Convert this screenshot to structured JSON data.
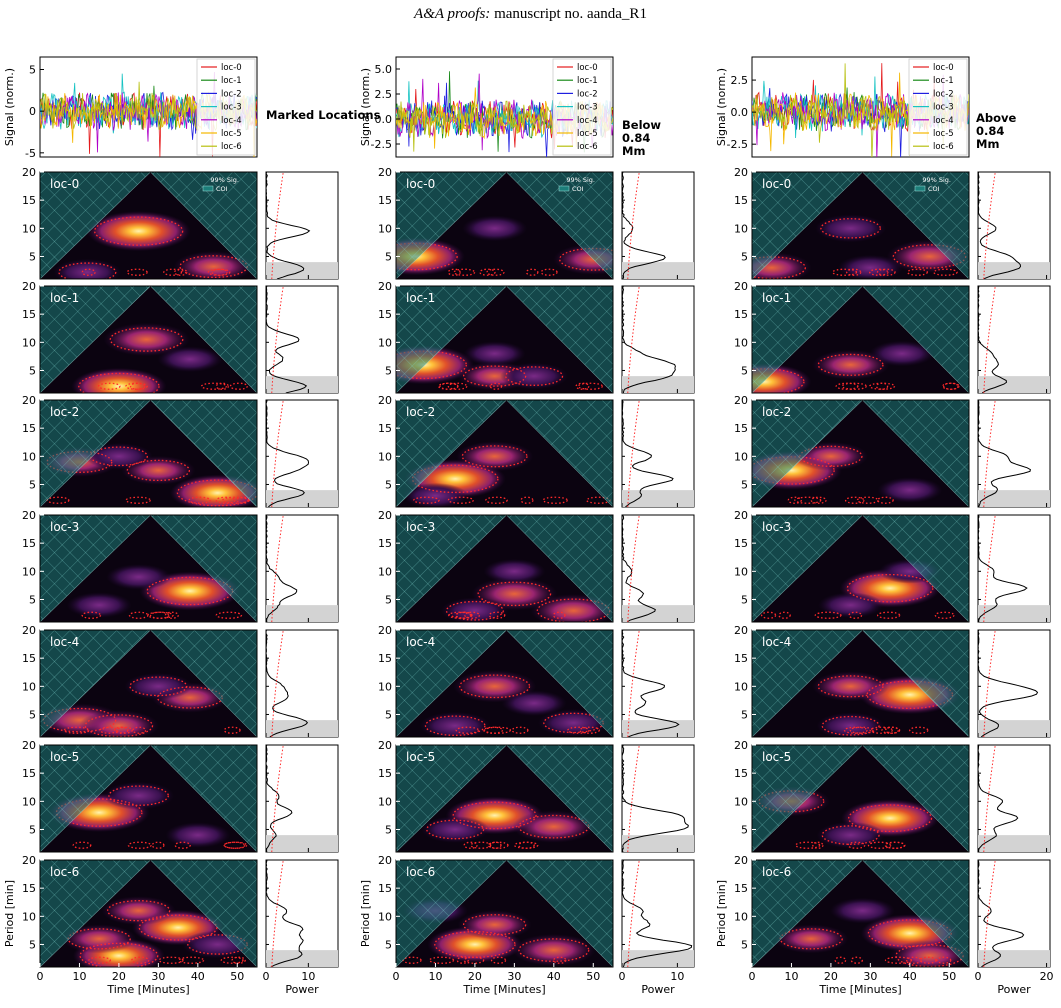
{
  "header": {
    "prefix": "A&A proofs:",
    "text": "manuscript no. aanda_R1"
  },
  "colors": {
    "loc-0": "#e41a1c",
    "loc-1": "#1a8a1a",
    "loc-2": "#1f1fe0",
    "loc-3": "#17c3c3",
    "loc-4": "#b000c8",
    "loc-5": "#f5b800",
    "loc-6": "#b8c010",
    "coi_fill": "#1d7f7a",
    "background": "#0b0310",
    "significance": "#ff2a2a"
  },
  "chart_data": {
    "type": "wavelet-panel-grid",
    "locations": [
      "loc-0",
      "loc-1",
      "loc-2",
      "loc-3",
      "loc-4",
      "loc-5",
      "loc-6"
    ],
    "wavelet_legend": [
      "99% Sig.",
      "COI"
    ],
    "time_xlabel": "Time [Minutes]",
    "period_ylabel": "Period [min]",
    "signal_ylabel": "Signal (norm.)",
    "power_xlabel": "Power",
    "period_ylim": [
      1,
      20
    ],
    "period_ticks": [
      "5",
      "10",
      "15",
      "20"
    ],
    "time_xlim": [
      0,
      55
    ],
    "time_ticks": [
      "0",
      "10",
      "20",
      "30",
      "40",
      "50"
    ],
    "columns": [
      {
        "label": "Marked Locations",
        "signal_ylim": [
          -5.5,
          6.5
        ],
        "signal_ticks": [
          "-5",
          "0",
          "5"
        ],
        "signal_tick_values": [
          -5,
          0,
          5
        ],
        "power_xlim": [
          0,
          17
        ],
        "power_ticks": [
          "0",
          "10"
        ],
        "power_tick_values": [
          0,
          10
        ],
        "power_peaks": [
          9.5,
          10.5,
          10,
          7,
          8,
          6,
          9
        ],
        "blobs": [
          [
            [
              25,
              9.5,
              1.0
            ],
            [
              44,
              3.2,
              0.6
            ],
            [
              12,
              2.2,
              0.4
            ]
          ],
          [
            [
              27,
              10.5,
              0.7
            ],
            [
              20,
              2.2,
              0.85
            ],
            [
              38,
              7,
              0.35
            ]
          ],
          [
            [
              10,
              9,
              0.55
            ],
            [
              45,
              3.5,
              0.85
            ],
            [
              30,
              7.5,
              0.5
            ],
            [
              20,
              10,
              0.4
            ]
          ],
          [
            [
              38,
              6.5,
              0.95
            ],
            [
              25,
              9,
              0.35
            ],
            [
              15,
              4,
              0.35
            ]
          ],
          [
            [
              10,
              4,
              0.7
            ],
            [
              20,
              3,
              0.6
            ],
            [
              38,
              8,
              0.55
            ],
            [
              30,
              10,
              0.4
            ]
          ],
          [
            [
              15,
              8,
              0.95
            ],
            [
              25,
              11,
              0.45
            ],
            [
              40,
              4,
              0.35
            ]
          ],
          [
            [
              35,
              8,
              0.8
            ],
            [
              20,
              3,
              0.8
            ],
            [
              25,
              11,
              0.5
            ],
            [
              45,
              5,
              0.45
            ],
            [
              15,
              6,
              0.5
            ]
          ]
        ]
      },
      {
        "label": "Below 0.84 Mm",
        "signal_ylim": [
          -3.8,
          6.2
        ],
        "signal_ticks": [
          "-2.5",
          "0.0",
          "2.5",
          "5.0"
        ],
        "signal_tick_values": [
          -2.5,
          0,
          2.5,
          5
        ],
        "power_xlim": [
          0,
          13
        ],
        "power_ticks": [
          "0",
          "10"
        ],
        "power_tick_values": [
          0,
          10
        ],
        "power_peaks": [
          5,
          8,
          9,
          5,
          11,
          10,
          9
        ],
        "blobs": [
          [
            [
              5,
              5,
              0.9
            ],
            [
              50,
              4.5,
              0.6
            ],
            [
              25,
              10,
              0.35
            ]
          ],
          [
            [
              7,
              6,
              0.95
            ],
            [
              25,
              4,
              0.5
            ],
            [
              35,
              4,
              0.4
            ],
            [
              25,
              8,
              0.3
            ]
          ],
          [
            [
              15,
              6,
              0.95
            ],
            [
              25,
              10,
              0.55
            ],
            [
              10,
              3,
              0.35
            ]
          ],
          [
            [
              30,
              6,
              0.7
            ],
            [
              45,
              3,
              0.7
            ],
            [
              20,
              3,
              0.4
            ],
            [
              30,
              10,
              0.3
            ]
          ],
          [
            [
              25,
              10,
              0.65
            ],
            [
              45,
              3.5,
              0.45
            ],
            [
              15,
              3,
              0.45
            ],
            [
              35,
              7,
              0.35
            ]
          ],
          [
            [
              25,
              7.5,
              0.9
            ],
            [
              40,
              5.5,
              0.65
            ],
            [
              15,
              5,
              0.4
            ]
          ],
          [
            [
              20,
              5,
              0.85
            ],
            [
              40,
              4,
              0.65
            ],
            [
              25,
              8.5,
              0.5
            ],
            [
              10,
              11,
              0.35
            ]
          ]
        ]
      },
      {
        "label": "Above 0.84 Mm",
        "signal_ylim": [
          -3.5,
          4.3
        ],
        "signal_ticks": [
          "-2.5",
          "0.0",
          "2.5"
        ],
        "signal_tick_values": [
          -2.5,
          0,
          2.5
        ],
        "power_xlim": [
          0,
          21
        ],
        "power_ticks": [
          "0",
          "20"
        ],
        "power_tick_values": [
          0,
          20
        ],
        "power_peaks": [
          11,
          9,
          15,
          14,
          14,
          12,
          10
        ],
        "blobs": [
          [
            [
              45,
              5,
              0.7
            ],
            [
              25,
              10,
              0.45
            ],
            [
              5,
              3,
              0.6
            ],
            [
              30,
              3,
              0.35
            ]
          ],
          [
            [
              3,
              3,
              0.85
            ],
            [
              25,
              6,
              0.55
            ],
            [
              38,
              8,
              0.35
            ]
          ],
          [
            [
              10,
              7.5,
              0.95
            ],
            [
              20,
              10,
              0.5
            ],
            [
              40,
              4,
              0.35
            ]
          ],
          [
            [
              35,
              7,
              0.95
            ],
            [
              25,
              4,
              0.35
            ],
            [
              40,
              10,
              0.3
            ]
          ],
          [
            [
              40,
              8.5,
              0.95
            ],
            [
              25,
              10,
              0.55
            ],
            [
              25,
              3,
              0.4
            ]
          ],
          [
            [
              35,
              7,
              0.9
            ],
            [
              10,
              10,
              0.55
            ],
            [
              25,
              4,
              0.4
            ]
          ],
          [
            [
              40,
              7,
              0.9
            ],
            [
              45,
              3,
              0.6
            ],
            [
              15,
              6,
              0.5
            ],
            [
              28,
              11,
              0.35
            ]
          ]
        ]
      }
    ]
  }
}
